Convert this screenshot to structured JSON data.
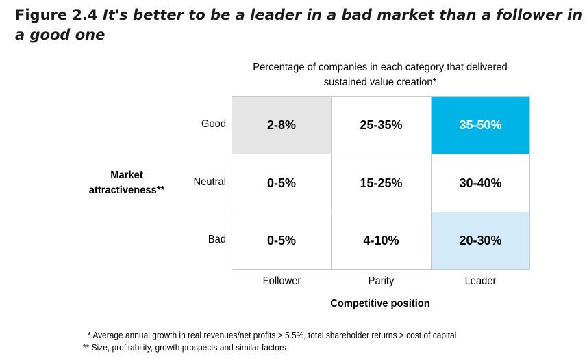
{
  "figure": {
    "label": "Figure 2.4",
    "title": "It's better to be a leader in a bad market than a follower in a good one"
  },
  "chart_data": {
    "type": "table",
    "subtitle_line1": "Percentage of companies in each category that delivered",
    "subtitle_line2": "sustained value creation*",
    "y_axis_label_line1": "Market",
    "y_axis_label_line2": "attractiveness**",
    "x_axis_label": "Competitive position",
    "rows": [
      "Good",
      "Neutral",
      "Bad"
    ],
    "columns": [
      "Follower",
      "Parity",
      "Leader"
    ],
    "cells": [
      [
        "2-8%",
        "25-35%",
        "35-50%"
      ],
      [
        "0-5%",
        "15-25%",
        "30-40%"
      ],
      [
        "0-5%",
        "4-10%",
        "20-30%"
      ]
    ],
    "cell_colors": [
      [
        "#e6e6e6",
        "#ffffff",
        "#00b4e8"
      ],
      [
        "#ffffff",
        "#ffffff",
        "#ffffff"
      ],
      [
        "#ffffff",
        "#ffffff",
        "#d3ebf8"
      ]
    ],
    "cell_text_colors": [
      [
        "#000000",
        "#000000",
        "#ffffff"
      ],
      [
        "#000000",
        "#000000",
        "#000000"
      ],
      [
        "#000000",
        "#000000",
        "#000000"
      ]
    ]
  },
  "footnotes": [
    "* Average annual growth in real revenues/net profits > 5.5%, total shareholder returns > cost of capital",
    "** Size, profitability, growth prospects and similar factors"
  ]
}
